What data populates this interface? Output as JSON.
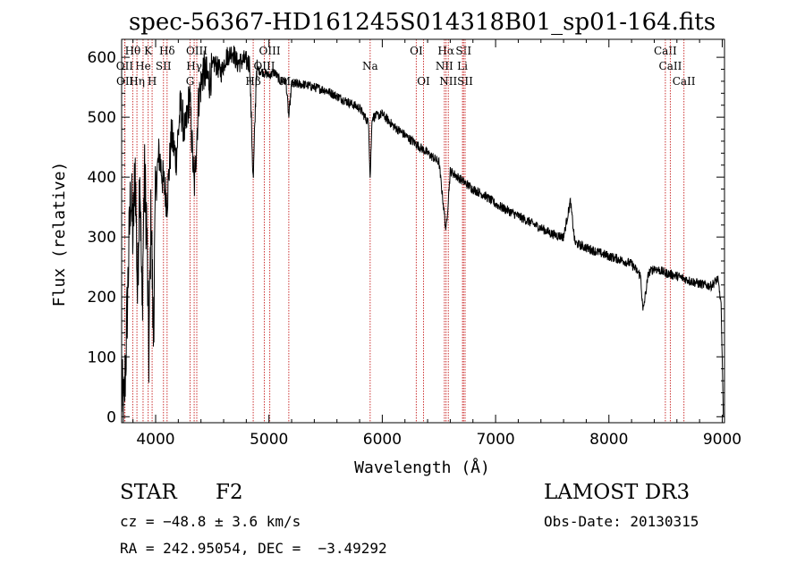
{
  "chart_data": {
    "type": "line",
    "title": "spec-56367-HD161245S014318B01_sp01-164.fits",
    "xlabel": "Wavelength (Å)",
    "ylabel": "Flux (relative)",
    "xlim": [
      3700,
      9020
    ],
    "ylim": [
      -10,
      630
    ],
    "xticks": [
      4000,
      5000,
      6000,
      7000,
      8000,
      9000
    ],
    "yticks": [
      0,
      100,
      200,
      300,
      400,
      500,
      600
    ],
    "line_color": "#000000",
    "marker_color": "#cc3333",
    "spectrum_keypoints": [
      [
        3700,
        40
      ],
      [
        3720,
        5
      ],
      [
        3740,
        120
      ],
      [
        3760,
        250
      ],
      [
        3780,
        380
      ],
      [
        3800,
        300
      ],
      [
        3820,
        420
      ],
      [
        3840,
        200
      ],
      [
        3860,
        430
      ],
      [
        3880,
        170
      ],
      [
        3900,
        400
      ],
      [
        3920,
        330
      ],
      [
        3940,
        100
      ],
      [
        3960,
        350
      ],
      [
        3980,
        130
      ],
      [
        4000,
        380
      ],
      [
        4030,
        440
      ],
      [
        4060,
        400
      ],
      [
        4101,
        360
      ],
      [
        4140,
        470
      ],
      [
        4180,
        430
      ],
      [
        4220,
        520
      ],
      [
        4260,
        470
      ],
      [
        4300,
        540
      ],
      [
        4340,
        380
      ],
      [
        4380,
        530
      ],
      [
        4420,
        580
      ],
      [
        4470,
        560
      ],
      [
        4520,
        590
      ],
      [
        4580,
        575
      ],
      [
        4620,
        600
      ],
      [
        4680,
        610
      ],
      [
        4720,
        590
      ],
      [
        4780,
        595
      ],
      [
        4830,
        590
      ],
      [
        4861,
        390
      ],
      [
        4890,
        580
      ],
      [
        4950,
        575
      ],
      [
        5000,
        570
      ],
      [
        5050,
        575
      ],
      [
        5100,
        560
      ],
      [
        5150,
        560
      ],
      [
        5175,
        500
      ],
      [
        5200,
        555
      ],
      [
        5300,
        555
      ],
      [
        5400,
        550
      ],
      [
        5500,
        545
      ],
      [
        5600,
        535
      ],
      [
        5700,
        525
      ],
      [
        5800,
        515
      ],
      [
        5880,
        490
      ],
      [
        5893,
        395
      ],
      [
        5910,
        500
      ],
      [
        6000,
        505
      ],
      [
        6100,
        485
      ],
      [
        6200,
        470
      ],
      [
        6300,
        455
      ],
      [
        6400,
        440
      ],
      [
        6500,
        425
      ],
      [
        6563,
        310
      ],
      [
        6600,
        410
      ],
      [
        6700,
        395
      ],
      [
        6800,
        380
      ],
      [
        6900,
        370
      ],
      [
        7000,
        355
      ],
      [
        7100,
        345
      ],
      [
        7200,
        335
      ],
      [
        7300,
        325
      ],
      [
        7400,
        315
      ],
      [
        7500,
        305
      ],
      [
        7600,
        300
      ],
      [
        7660,
        360
      ],
      [
        7700,
        290
      ],
      [
        7800,
        282
      ],
      [
        7900,
        275
      ],
      [
        8000,
        268
      ],
      [
        8100,
        262
      ],
      [
        8200,
        255
      ],
      [
        8280,
        235
      ],
      [
        8300,
        175
      ],
      [
        8350,
        240
      ],
      [
        8400,
        248
      ],
      [
        8500,
        240
      ],
      [
        8600,
        235
      ],
      [
        8700,
        228
      ],
      [
        8800,
        222
      ],
      [
        8900,
        218
      ],
      [
        8960,
        230
      ],
      [
        8990,
        190
      ],
      [
        9010,
        0
      ]
    ],
    "line_markers": [
      {
        "label": "Hθ",
        "wave": 3798,
        "row": 0
      },
      {
        "label": "K",
        "wave": 3934,
        "row": 0
      },
      {
        "label": "Hδ",
        "wave": 4101,
        "row": 0
      },
      {
        "label": "OIII",
        "wave": 4363,
        "row": 0
      },
      {
        "label": "OIII",
        "wave": 5007,
        "row": 0
      },
      {
        "label": "OI",
        "wave": 6300,
        "row": 0
      },
      {
        "label": "Hα",
        "wave": 6563,
        "row": 0
      },
      {
        "label": "SII",
        "wave": 6717,
        "row": 0
      },
      {
        "label": "CaII",
        "wave": 8498,
        "row": 0
      },
      {
        "label": "OII",
        "wave": 3727,
        "row": 1
      },
      {
        "label": "He",
        "wave": 3889,
        "row": 1
      },
      {
        "label": "SII",
        "wave": 4069,
        "row": 1
      },
      {
        "label": "Hγ",
        "wave": 4340,
        "row": 1
      },
      {
        "label": "OIII",
        "wave": 4959,
        "row": 1
      },
      {
        "label": "Na",
        "wave": 5893,
        "row": 1
      },
      {
        "label": "NII",
        "wave": 6548,
        "row": 1
      },
      {
        "label": "Li",
        "wave": 6708,
        "row": 1
      },
      {
        "label": "CaII",
        "wave": 8542,
        "row": 1
      },
      {
        "label": "OII",
        "wave": 3729,
        "row": 2
      },
      {
        "label": "Hη",
        "wave": 3835,
        "row": 2
      },
      {
        "label": "H",
        "wave": 3969,
        "row": 2
      },
      {
        "label": "G",
        "wave": 4304,
        "row": 2
      },
      {
        "label": "Hβ",
        "wave": 4861,
        "row": 2
      },
      {
        "label": "Mg",
        "wave": 5175,
        "row": 2
      },
      {
        "label": "OI",
        "wave": 6364,
        "row": 2
      },
      {
        "label": "NII",
        "wave": 6583,
        "row": 2
      },
      {
        "label": "SII",
        "wave": 6731,
        "row": 2
      },
      {
        "label": "CaII",
        "wave": 8662,
        "row": 2
      }
    ]
  },
  "info": {
    "class": "STAR",
    "subclass": "F2",
    "survey": "LAMOST DR3",
    "cz": "cz = −48.8 ± 3.6 km/s",
    "obs_date": "Obs-Date: 20130315",
    "coords": "RA = 242.95054, DEC =  −3.49292"
  }
}
